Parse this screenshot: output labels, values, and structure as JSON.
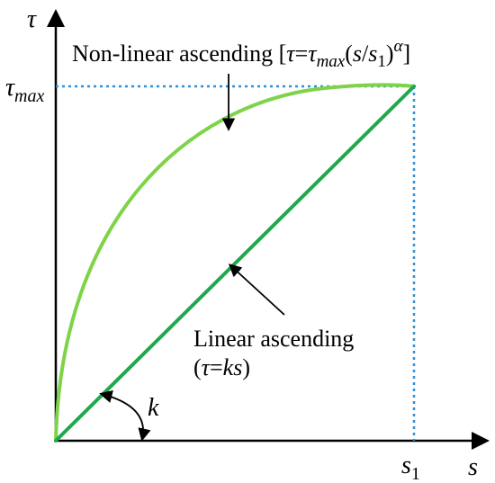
{
  "diagram": {
    "axes": {
      "y_label": "τ",
      "x_label": "s",
      "y_marker": {
        "main": "τ",
        "sub": "max"
      },
      "x_marker": {
        "main": "s",
        "sub": "1"
      }
    },
    "curves": {
      "nonlinear": {
        "text": "Non-linear ascending",
        "formula": {
          "open": "[",
          "tau": "τ",
          "eq": "=",
          "tau2": "τ",
          "sub": "max",
          "paren_open": "(",
          "s": "s",
          "slash": "/",
          "s1": "s",
          "s1_sub": "1",
          "paren_close": ")",
          "exp": "α",
          "close": "]"
        },
        "color": "#7ed348"
      },
      "linear": {
        "text": "Linear ascending",
        "formula": {
          "open": "(",
          "tau": "τ",
          "eq": "=",
          "ks": "ks",
          "close": ")"
        },
        "color": "#1fa84e"
      }
    },
    "slope_label": "k",
    "guide_color": "#2f8fd8"
  }
}
